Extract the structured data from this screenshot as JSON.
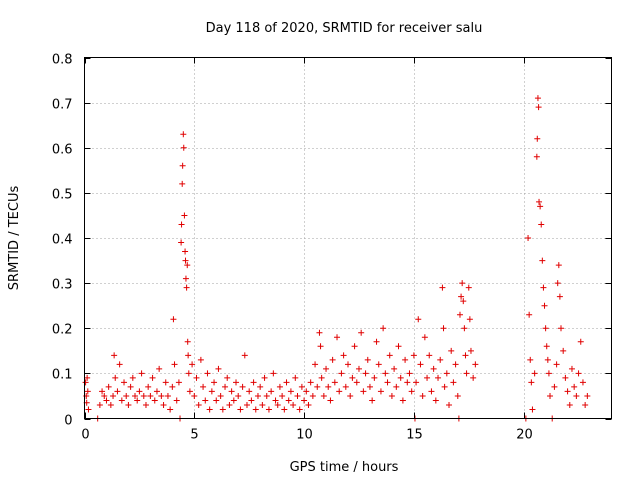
{
  "chart_data": {
    "type": "scatter",
    "title": "Day 118 of 2020, SRMTID for receiver salu",
    "xlabel": "GPS time / hours",
    "ylabel": "SRMTID / TECUs",
    "xlim": [
      0,
      24
    ],
    "ylim": [
      0,
      0.8
    ],
    "xticks": [
      0,
      5,
      10,
      15,
      20
    ],
    "yticks": [
      0,
      0.1,
      0.2,
      0.3,
      0.4,
      0.5,
      0.6,
      0.7,
      0.8
    ],
    "xtick_labels": [
      "0",
      "5",
      "10",
      "15",
      "20"
    ],
    "ytick_labels": [
      "0",
      "0.1",
      "0.2",
      "0.3",
      "0.4",
      "0.5",
      "0.6",
      "0.7",
      "0.8"
    ],
    "grid": true,
    "marker": "plus",
    "color": "#e00000",
    "series": [
      {
        "name": "SRMTID",
        "points": [
          [
            0.05,
            0.08
          ],
          [
            0.08,
            0.05
          ],
          [
            0.1,
            0.035
          ],
          [
            0.12,
            0.09
          ],
          [
            0.15,
            0.06
          ],
          [
            0.18,
            0.02
          ],
          [
            0.6,
            0.0
          ],
          [
            0.7,
            0.03
          ],
          [
            0.8,
            0.06
          ],
          [
            0.9,
            0.05
          ],
          [
            1.0,
            0.04
          ],
          [
            1.1,
            0.07
          ],
          [
            1.2,
            0.03
          ],
          [
            1.3,
            0.05
          ],
          [
            1.35,
            0.14
          ],
          [
            1.4,
            0.09
          ],
          [
            1.5,
            0.06
          ],
          [
            1.6,
            0.12
          ],
          [
            1.7,
            0.04
          ],
          [
            1.8,
            0.08
          ],
          [
            1.9,
            0.05
          ],
          [
            2.0,
            0.03
          ],
          [
            2.1,
            0.07
          ],
          [
            2.2,
            0.09
          ],
          [
            2.3,
            0.05
          ],
          [
            2.4,
            0.04
          ],
          [
            2.5,
            0.06
          ],
          [
            2.6,
            0.1
          ],
          [
            2.7,
            0.05
          ],
          [
            2.8,
            0.03
          ],
          [
            2.9,
            0.07
          ],
          [
            3.0,
            0.05
          ],
          [
            3.1,
            0.09
          ],
          [
            3.2,
            0.04
          ],
          [
            3.3,
            0.06
          ],
          [
            3.4,
            0.11
          ],
          [
            3.5,
            0.05
          ],
          [
            3.6,
            0.03
          ],
          [
            3.7,
            0.08
          ],
          [
            3.8,
            0.05
          ],
          [
            3.9,
            0.02
          ],
          [
            4.0,
            0.07
          ],
          [
            4.05,
            0.22
          ],
          [
            4.1,
            0.12
          ],
          [
            4.2,
            0.04
          ],
          [
            4.3,
            0.08
          ],
          [
            4.35,
            0.0
          ],
          [
            4.4,
            0.39
          ],
          [
            4.42,
            0.43
          ],
          [
            4.45,
            0.52
          ],
          [
            4.47,
            0.56
          ],
          [
            4.5,
            0.63
          ],
          [
            4.52,
            0.6
          ],
          [
            4.55,
            0.45
          ],
          [
            4.58,
            0.37
          ],
          [
            4.6,
            0.35
          ],
          [
            4.62,
            0.31
          ],
          [
            4.65,
            0.29
          ],
          [
            4.68,
            0.34
          ],
          [
            4.7,
            0.17
          ],
          [
            4.72,
            0.14
          ],
          [
            4.75,
            0.1
          ],
          [
            4.8,
            0.06
          ],
          [
            4.9,
            0.12
          ],
          [
            5.0,
            0.05
          ],
          [
            5.1,
            0.09
          ],
          [
            5.2,
            0.03
          ],
          [
            5.3,
            0.13
          ],
          [
            5.4,
            0.07
          ],
          [
            5.5,
            0.04
          ],
          [
            5.6,
            0.1
          ],
          [
            5.7,
            0.02
          ],
          [
            5.8,
            0.06
          ],
          [
            5.9,
            0.08
          ],
          [
            6.0,
            0.04
          ],
          [
            6.1,
            0.11
          ],
          [
            6.2,
            0.05
          ],
          [
            6.3,
            0.02
          ],
          [
            6.4,
            0.07
          ],
          [
            6.5,
            0.09
          ],
          [
            6.6,
            0.03
          ],
          [
            6.7,
            0.06
          ],
          [
            6.8,
            0.04
          ],
          [
            6.9,
            0.08
          ],
          [
            7.0,
            0.05
          ],
          [
            7.1,
            0.02
          ],
          [
            7.2,
            0.07
          ],
          [
            7.3,
            0.14
          ],
          [
            7.4,
            0.03
          ],
          [
            7.5,
            0.06
          ],
          [
            7.6,
            0.04
          ],
          [
            7.7,
            0.08
          ],
          [
            7.8,
            0.02
          ],
          [
            7.9,
            0.05
          ],
          [
            8.0,
            0.07
          ],
          [
            8.1,
            0.03
          ],
          [
            8.2,
            0.09
          ],
          [
            8.3,
            0.05
          ],
          [
            8.4,
            0.02
          ],
          [
            8.5,
            0.06
          ],
          [
            8.6,
            0.1
          ],
          [
            8.7,
            0.04
          ],
          [
            8.8,
            0.03
          ],
          [
            8.9,
            0.07
          ],
          [
            9.0,
            0.05
          ],
          [
            9.1,
            0.02
          ],
          [
            9.2,
            0.08
          ],
          [
            9.3,
            0.04
          ],
          [
            9.4,
            0.06
          ],
          [
            9.5,
            0.03
          ],
          [
            9.6,
            0.09
          ],
          [
            9.7,
            0.05
          ],
          [
            9.8,
            0.02
          ],
          [
            9.9,
            0.07
          ],
          [
            10.0,
            0.04
          ],
          [
            10.1,
            0.06
          ],
          [
            10.2,
            0.03
          ],
          [
            10.3,
            0.08
          ],
          [
            10.4,
            0.05
          ],
          [
            10.5,
            0.12
          ],
          [
            10.6,
            0.07
          ],
          [
            10.7,
            0.19
          ],
          [
            10.75,
            0.16
          ],
          [
            10.8,
            0.09
          ],
          [
            10.9,
            0.05
          ],
          [
            11.0,
            0.11
          ],
          [
            11.1,
            0.07
          ],
          [
            11.2,
            0.04
          ],
          [
            11.3,
            0.13
          ],
          [
            11.4,
            0.08
          ],
          [
            11.5,
            0.18
          ],
          [
            11.6,
            0.06
          ],
          [
            11.7,
            0.1
          ],
          [
            11.8,
            0.14
          ],
          [
            11.9,
            0.07
          ],
          [
            12.0,
            0.12
          ],
          [
            12.1,
            0.05
          ],
          [
            12.2,
            0.09
          ],
          [
            12.3,
            0.16
          ],
          [
            12.4,
            0.08
          ],
          [
            12.5,
            0.11
          ],
          [
            12.6,
            0.19
          ],
          [
            12.7,
            0.06
          ],
          [
            12.8,
            0.1
          ],
          [
            12.9,
            0.13
          ],
          [
            13.0,
            0.07
          ],
          [
            13.1,
            0.04
          ],
          [
            13.2,
            0.09
          ],
          [
            13.3,
            0.17
          ],
          [
            13.4,
            0.12
          ],
          [
            13.5,
            0.06
          ],
          [
            13.6,
            0.2
          ],
          [
            13.7,
            0.1
          ],
          [
            13.8,
            0.08
          ],
          [
            13.9,
            0.14
          ],
          [
            14.0,
            0.05
          ],
          [
            14.1,
            0.11
          ],
          [
            14.2,
            0.07
          ],
          [
            14.3,
            0.16
          ],
          [
            14.4,
            0.09
          ],
          [
            14.5,
            0.04
          ],
          [
            14.6,
            0.13
          ],
          [
            14.7,
            0.08
          ],
          [
            14.8,
            0.1
          ],
          [
            14.9,
            0.06
          ],
          [
            15.0,
            0.14
          ],
          [
            15.05,
            0.0
          ],
          [
            15.1,
            0.08
          ],
          [
            15.2,
            0.22
          ],
          [
            15.3,
            0.12
          ],
          [
            15.4,
            0.05
          ],
          [
            15.5,
            0.18
          ],
          [
            15.6,
            0.09
          ],
          [
            15.7,
            0.14
          ],
          [
            15.8,
            0.06
          ],
          [
            15.9,
            0.11
          ],
          [
            16.0,
            0.04
          ],
          [
            16.1,
            0.09
          ],
          [
            16.2,
            0.13
          ],
          [
            16.3,
            0.29
          ],
          [
            16.35,
            0.2
          ],
          [
            16.4,
            0.07
          ],
          [
            16.5,
            0.1
          ],
          [
            16.6,
            0.03
          ],
          [
            16.7,
            0.15
          ],
          [
            16.8,
            0.08
          ],
          [
            16.9,
            0.12
          ],
          [
            17.0,
            0.05
          ],
          [
            17.05,
            0.0
          ],
          [
            17.1,
            0.23
          ],
          [
            17.15,
            0.27
          ],
          [
            17.2,
            0.3
          ],
          [
            17.25,
            0.26
          ],
          [
            17.3,
            0.2
          ],
          [
            17.35,
            0.14
          ],
          [
            17.4,
            0.1
          ],
          [
            17.5,
            0.29
          ],
          [
            17.55,
            0.22
          ],
          [
            17.6,
            0.15
          ],
          [
            17.7,
            0.09
          ],
          [
            17.8,
            0.12
          ],
          [
            20.1,
            0.0
          ],
          [
            20.2,
            0.4
          ],
          [
            20.25,
            0.23
          ],
          [
            20.3,
            0.13
          ],
          [
            20.35,
            0.08
          ],
          [
            20.4,
            0.02
          ],
          [
            20.5,
            0.1
          ],
          [
            20.6,
            0.58
          ],
          [
            20.62,
            0.62
          ],
          [
            20.65,
            0.71
          ],
          [
            20.68,
            0.69
          ],
          [
            20.7,
            0.48
          ],
          [
            20.75,
            0.47
          ],
          [
            20.8,
            0.43
          ],
          [
            20.85,
            0.35
          ],
          [
            20.9,
            0.29
          ],
          [
            20.95,
            0.25
          ],
          [
            21.0,
            0.2
          ],
          [
            21.05,
            0.16
          ],
          [
            21.1,
            0.13
          ],
          [
            21.15,
            0.1
          ],
          [
            21.2,
            0.05
          ],
          [
            21.3,
            0.0
          ],
          [
            21.4,
            0.07
          ],
          [
            21.5,
            0.12
          ],
          [
            21.55,
            0.3
          ],
          [
            21.6,
            0.34
          ],
          [
            21.65,
            0.27
          ],
          [
            21.7,
            0.2
          ],
          [
            21.8,
            0.15
          ],
          [
            21.9,
            0.09
          ],
          [
            22.0,
            0.06
          ],
          [
            22.1,
            0.03
          ],
          [
            22.2,
            0.11
          ],
          [
            22.3,
            0.07
          ],
          [
            22.4,
            0.05
          ],
          [
            22.5,
            0.1
          ],
          [
            22.6,
            0.17
          ],
          [
            22.7,
            0.08
          ],
          [
            22.8,
            0.03
          ],
          [
            22.9,
            0.05
          ]
        ]
      }
    ]
  }
}
